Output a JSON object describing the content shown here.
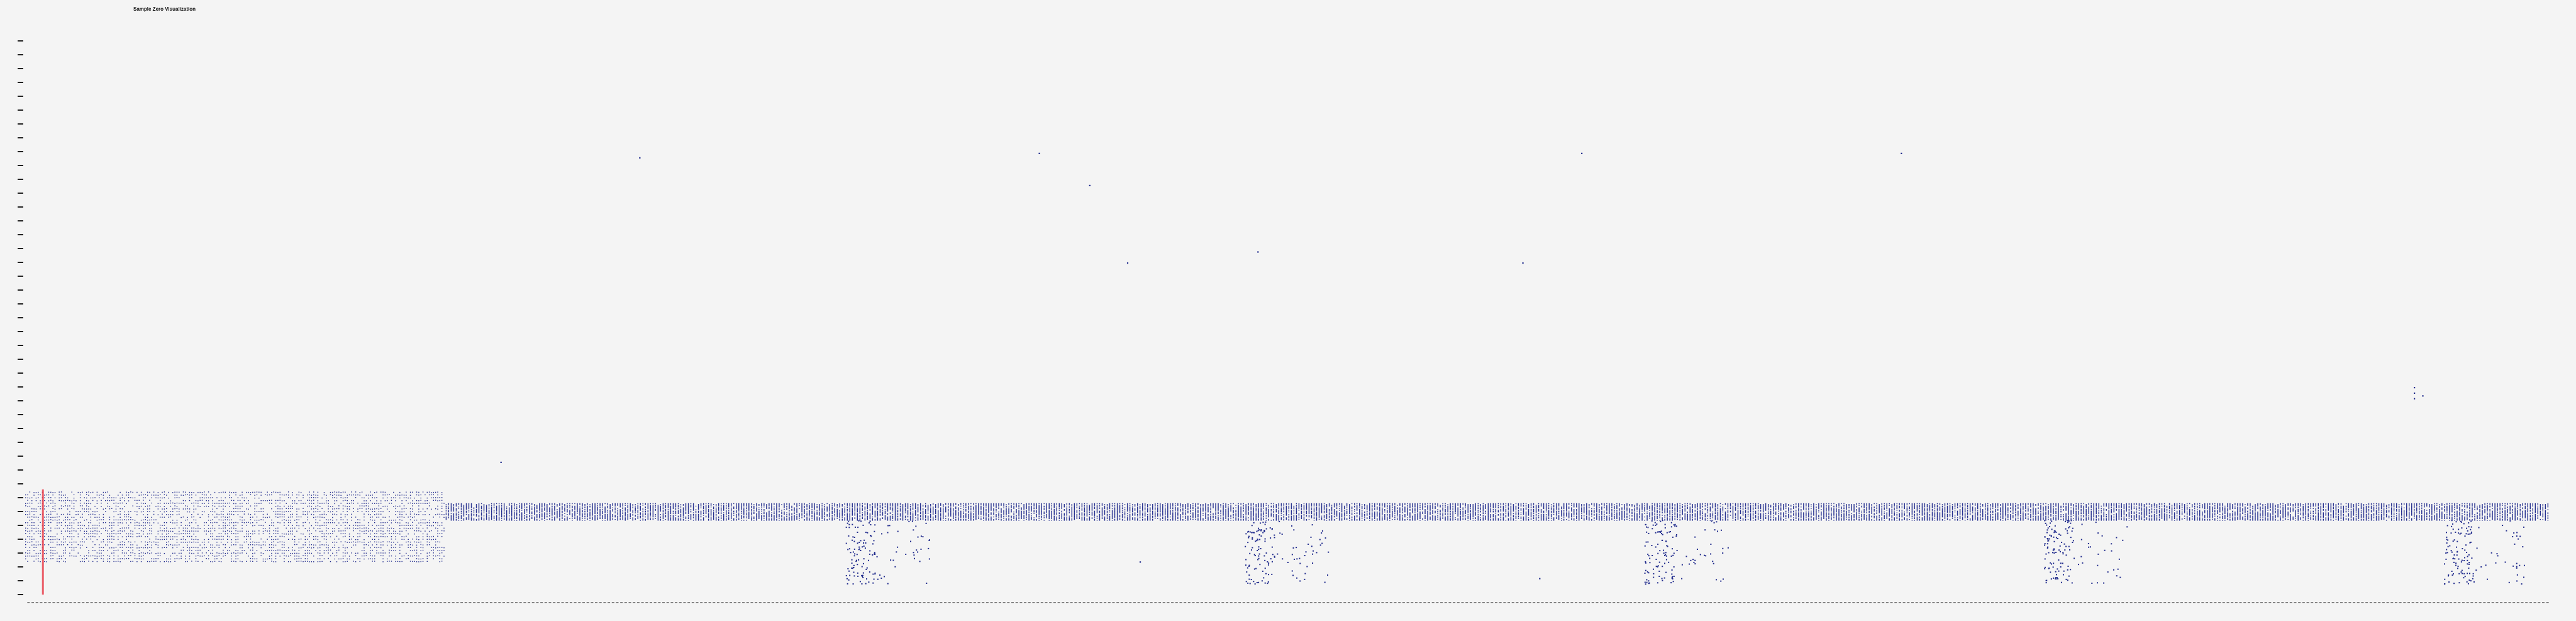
{
  "chart_data": {
    "type": "scatter",
    "title": "Sample Zero Visualization",
    "xlabel": "",
    "ylabel": "",
    "ylim": [
      0,
      1000
    ],
    "num_columns": 600,
    "colors": {
      "points": "#1f2a8c",
      "marker": "#e8434f",
      "background": "#f4f4f4",
      "tick": "#222222"
    },
    "highlight_column": 4,
    "bands": [
      {
        "x": [
          0,
          100
        ],
        "y": [
          60,
          185
        ],
        "density": "dense-rows"
      },
      {
        "x": [
          100,
          600
        ],
        "y": [
          135,
          165
        ],
        "density": "dense-block"
      }
    ],
    "clusters": [
      {
        "x": [
          195,
          215
        ],
        "y": [
          20,
          135
        ]
      },
      {
        "x": [
          290,
          310
        ],
        "y": [
          20,
          135
        ]
      },
      {
        "x": [
          385,
          405
        ],
        "y": [
          20,
          135
        ]
      },
      {
        "x": [
          480,
          500
        ],
        "y": [
          20,
          135
        ]
      },
      {
        "x": [
          575,
          595
        ],
        "y": [
          20,
          135
        ]
      }
    ],
    "outliers": [
      {
        "x": 146,
        "y": 790
      },
      {
        "x": 241,
        "y": 798
      },
      {
        "x": 253,
        "y": 740
      },
      {
        "x": 262,
        "y": 600
      },
      {
        "x": 293,
        "y": 620
      },
      {
        "x": 356,
        "y": 600
      },
      {
        "x": 370,
        "y": 798
      },
      {
        "x": 446,
        "y": 798
      },
      {
        "x": 113,
        "y": 240
      },
      {
        "x": 568,
        "y": 375
      },
      {
        "x": 568,
        "y": 365
      },
      {
        "x": 568,
        "y": 355
      },
      {
        "x": 570,
        "y": 360
      },
      {
        "x": 360,
        "y": 30
      },
      {
        "x": 265,
        "y": 60
      }
    ]
  }
}
